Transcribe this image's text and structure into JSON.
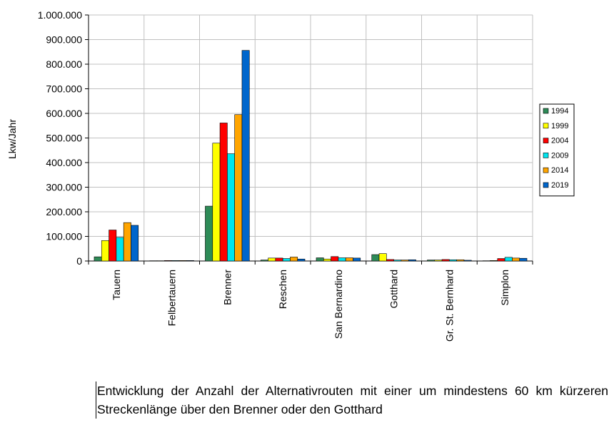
{
  "chart_data": {
    "type": "bar",
    "ylabel": "Lkw/Jahr",
    "xlabel": "",
    "ylim": [
      0,
      1000000
    ],
    "yticks": [
      "0",
      "100.000",
      "200.000",
      "300.000",
      "400.000",
      "500.000",
      "600.000",
      "700.000",
      "800.000",
      "900.000",
      "1.000.000"
    ],
    "grid": true,
    "legend_position": "right",
    "categories": [
      "Tauern",
      "Felbertauern",
      "Brenner",
      "Reschen",
      "San Bernardino",
      "Gotthard",
      "Gr. St. Bernhard",
      "Simplon"
    ],
    "series": [
      {
        "name": "1994",
        "color": "#2e8b57",
        "values": [
          17000,
          1000,
          223000,
          4000,
          13000,
          26000,
          4000,
          1000
        ]
      },
      {
        "name": "1999",
        "color": "#ffff00",
        "values": [
          83000,
          1000,
          479000,
          12000,
          8000,
          30000,
          4000,
          2000
        ]
      },
      {
        "name": "2004",
        "color": "#ff0000",
        "values": [
          126000,
          2000,
          561000,
          12000,
          18000,
          6000,
          6000,
          10000
        ]
      },
      {
        "name": "2009",
        "color": "#00e5ee",
        "values": [
          96000,
          2000,
          436000,
          10000,
          13000,
          4000,
          5000,
          15000
        ]
      },
      {
        "name": "2014",
        "color": "#ffa500",
        "values": [
          156000,
          2000,
          595000,
          16000,
          13000,
          4000,
          5000,
          12000
        ]
      },
      {
        "name": "2019",
        "color": "#0066cc",
        "values": [
          145000,
          2000,
          856000,
          8000,
          12000,
          5000,
          3000,
          11000
        ]
      }
    ]
  },
  "caption": "Entwicklung der Anzahl der Alternativrouten mit einer um mindestens 60 km kürzeren Streckenlänge über den Brenner oder den Gotthard"
}
